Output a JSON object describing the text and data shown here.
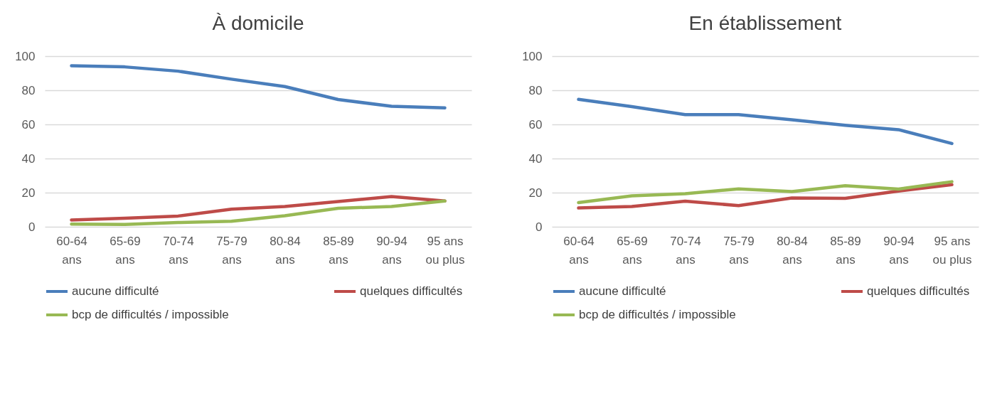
{
  "chart_data": [
    {
      "type": "line",
      "title": "À domicile",
      "categories": [
        "60-64 ans",
        "65-69 ans",
        "70-74 ans",
        "75-79 ans",
        "80-84 ans",
        "85-89 ans",
        "90-94 ans",
        "95 ans ou plus"
      ],
      "ylim": [
        0,
        100
      ],
      "yticks": [
        0,
        20,
        40,
        60,
        80,
        100
      ],
      "grid": "y",
      "legend": "bottom",
      "marker": "none",
      "line_style": "solid",
      "series": [
        {
          "name": "aucune difficulté",
          "color": "#4a7ebb",
          "values": [
            94.4,
            93.7,
            91.2,
            86.5,
            82.2,
            74.6,
            70.6,
            69.7
          ]
        },
        {
          "name": "quelques difficultés",
          "color": "#be4b48",
          "values": [
            4,
            5,
            6.3,
            10.3,
            11.9,
            14.8,
            17.7,
            15.1
          ]
        },
        {
          "name": "bcp de difficultés / impossible",
          "color": "#98b954",
          "values": [
            1.6,
            1.4,
            2.5,
            3.2,
            6.5,
            10.8,
            11.9,
            15.1
          ]
        }
      ]
    },
    {
      "type": "line",
      "title": "En établissement",
      "categories": [
        "60-64 ans",
        "65-69 ans",
        "70-74 ans",
        "75-79 ans",
        "80-84 ans",
        "85-89 ans",
        "90-94 ans",
        "95 ans ou plus"
      ],
      "ylim": [
        0,
        100
      ],
      "yticks": [
        0,
        20,
        40,
        60,
        80,
        100
      ],
      "grid": "y",
      "legend": "bottom",
      "marker": "none",
      "line_style": "solid",
      "series": [
        {
          "name": "aucune difficulté",
          "color": "#4a7ebb",
          "values": [
            74.7,
            70.4,
            65.7,
            65.7,
            62.7,
            59.5,
            56.9,
            48.8
          ]
        },
        {
          "name": "quelques difficultés",
          "color": "#be4b48",
          "values": [
            11,
            11.9,
            15,
            12.4,
            16.9,
            16.7,
            20.9,
            24.7
          ]
        },
        {
          "name": "bcp de difficultés / impossible",
          "color": "#98b954",
          "values": [
            14.2,
            18.1,
            19.4,
            22.2,
            20.6,
            24.1,
            22.1,
            26.4
          ]
        }
      ]
    }
  ]
}
